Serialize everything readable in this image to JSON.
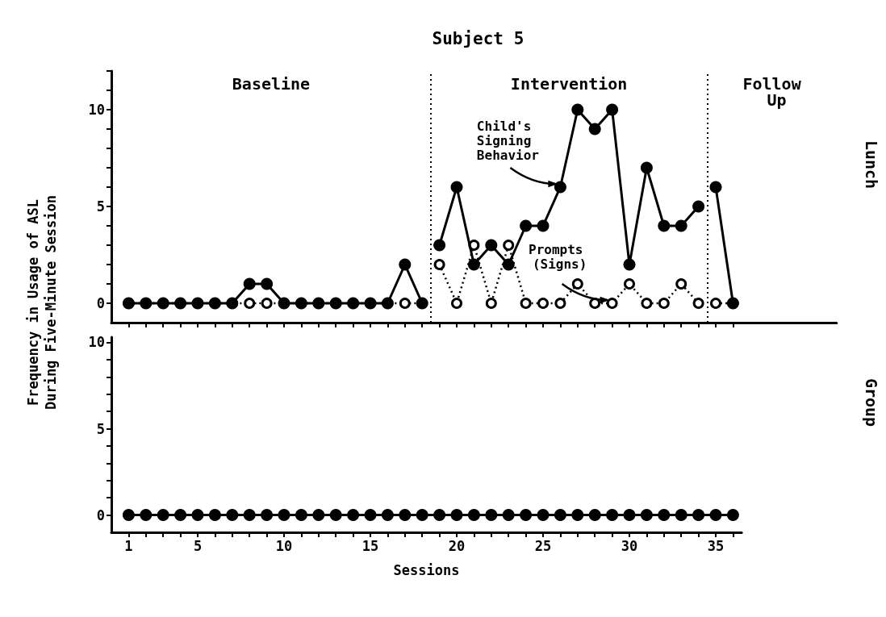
{
  "chart_data": [
    {
      "type": "line",
      "title": "Subject 5",
      "ylabel": "Frequency in Usage of ASL During Five-Minute Session",
      "xlim": [
        0,
        42
      ],
      "ylim": [
        -1,
        12
      ],
      "xticks": [
        1,
        2,
        3,
        4,
        5,
        6,
        7,
        8,
        9,
        10,
        11,
        12,
        13,
        14,
        15,
        16,
        17,
        18,
        19,
        20,
        21,
        22,
        23,
        24,
        25,
        26,
        27,
        28,
        29,
        30,
        31,
        32,
        33,
        34,
        35,
        36
      ],
      "yticks": [
        0,
        {
          "value": 1,
          "label": null
        },
        {
          "value": 2,
          "label": null
        },
        {
          "value": 3,
          "label": null
        },
        {
          "value": 4,
          "label": null
        },
        5,
        {
          "value": 6,
          "label": null
        },
        {
          "value": 7,
          "label": null
        },
        {
          "value": 8,
          "label": null
        },
        {
          "value": 9,
          "label": null
        },
        10,
        {
          "value": 11,
          "label": null
        },
        {
          "value": 12,
          "label": null
        }
      ],
      "tick_labels": "y",
      "grid": false,
      "marker": "circle",
      "series": [
        {
          "color": "#000000",
          "line_style": "dotted",
          "x": [
            1,
            2,
            3,
            4,
            5,
            6,
            7,
            8,
            9,
            10,
            11,
            12,
            13,
            14,
            15,
            16,
            17,
            18
          ],
          "values": [
            0,
            0,
            0,
            0,
            0,
            0,
            0,
            0,
            0,
            0,
            0,
            0,
            0,
            0,
            0,
            0,
            0,
            0
          ]
        },
        {
          "color": "#000000",
          "line_style": "dotted",
          "x": [
            19,
            20,
            21,
            22,
            23,
            24,
            25,
            26,
            27,
            28,
            29,
            30,
            31,
            32,
            33,
            34
          ],
          "values": [
            2,
            0,
            3,
            0,
            3,
            0,
            0,
            0,
            1,
            0,
            0,
            1,
            0,
            0,
            1,
            0
          ]
        },
        {
          "color": "#000000",
          "line_style": "dotted",
          "x": [
            35,
            36
          ],
          "values": [
            0,
            0
          ]
        },
        {
          "color": "#000000",
          "line_style": "solid",
          "x": [
            1,
            2,
            3,
            4,
            5,
            6,
            7,
            8,
            9,
            10,
            11,
            12,
            13,
            14,
            15,
            16,
            17,
            18
          ],
          "values": [
            0,
            0,
            0,
            0,
            0,
            0,
            0,
            1,
            1,
            0,
            0,
            0,
            0,
            0,
            0,
            0,
            2,
            0
          ]
        },
        {
          "color": "#000000",
          "line_style": "solid",
          "x": [
            19,
            20,
            21,
            22,
            23,
            24,
            25,
            26,
            27,
            28,
            29,
            30,
            31,
            32,
            33,
            34
          ],
          "values": [
            3,
            6,
            2,
            3,
            2,
            4,
            4,
            6,
            10,
            9,
            10,
            2,
            7,
            4,
            4,
            5
          ]
        },
        {
          "color": "#000000",
          "line_style": "solid",
          "x": [
            35,
            36
          ],
          "values": [
            6,
            0
          ]
        }
      ],
      "ref_lines": [
        {
          "axis": "x",
          "value": 18.5,
          "line_style": "dotted"
        },
        {
          "axis": "x",
          "value": 34.5,
          "line_style": "dotted"
        }
      ],
      "annotations": [
        "Baseline",
        "Intervention",
        "Follow Up",
        "Lunch",
        {
          "text": "Child's Signing Behavior",
          "x": 26,
          "y": 6
        },
        {
          "text": "Prompts (Signs)",
          "x": 29,
          "y": 0
        }
      ]
    },
    {
      "type": "line",
      "xlabel": "Sessions",
      "xlim": [
        0,
        36.5
      ],
      "ylim": [
        -1,
        10.3
      ],
      "xticks": [
        1,
        {
          "value": 2,
          "label": null
        },
        {
          "value": 3,
          "label": null
        },
        {
          "value": 4,
          "label": null
        },
        5,
        {
          "value": 6,
          "label": null
        },
        {
          "value": 7,
          "label": null
        },
        {
          "value": 8,
          "label": null
        },
        {
          "value": 9,
          "label": null
        },
        10,
        {
          "value": 11,
          "label": null
        },
        {
          "value": 12,
          "label": null
        },
        {
          "value": 13,
          "label": null
        },
        {
          "value": 14,
          "label": null
        },
        15,
        {
          "value": 16,
          "label": null
        },
        {
          "value": 17,
          "label": null
        },
        {
          "value": 18,
          "label": null
        },
        {
          "value": 19,
          "label": null
        },
        20,
        {
          "value": 21,
          "label": null
        },
        {
          "value": 22,
          "label": null
        },
        {
          "value": 23,
          "label": null
        },
        {
          "value": 24,
          "label": null
        },
        25,
        {
          "value": 26,
          "label": null
        },
        {
          "value": 27,
          "label": null
        },
        {
          "value": 28,
          "label": null
        },
        {
          "value": 29,
          "label": null
        },
        30,
        {
          "value": 31,
          "label": null
        },
        {
          "value": 32,
          "label": null
        },
        {
          "value": 33,
          "label": null
        },
        {
          "value": 34,
          "label": null
        },
        35,
        {
          "value": 36,
          "label": null
        }
      ],
      "yticks": [
        0,
        {
          "value": 1,
          "label": null
        },
        {
          "value": 2,
          "label": null
        },
        {
          "value": 3,
          "label": null
        },
        {
          "value": 4,
          "label": null
        },
        5,
        {
          "value": 6,
          "label": null
        },
        {
          "value": 7,
          "label": null
        },
        {
          "value": 8,
          "label": null
        },
        {
          "value": 9,
          "label": null
        },
        10
      ],
      "grid": false,
      "marker": "circle",
      "series": [
        {
          "color": "#000000",
          "line_style": "solid",
          "x": [
            1,
            2,
            3,
            4,
            5,
            6,
            7,
            8,
            9,
            10,
            11,
            12,
            13,
            14,
            15,
            16,
            17,
            18,
            19,
            20,
            21,
            22,
            23,
            24,
            25,
            26,
            27,
            28,
            29,
            30,
            31,
            32,
            33,
            34,
            35,
            36
          ],
          "values": [
            0,
            0,
            0,
            0,
            0,
            0,
            0,
            0,
            0,
            0,
            0,
            0,
            0,
            0,
            0,
            0,
            0,
            0,
            0,
            0,
            0,
            0,
            0,
            0,
            0,
            0,
            0,
            0,
            0,
            0,
            0,
            0,
            0,
            0,
            0,
            0
          ]
        }
      ],
      "annotations": [
        "Group"
      ]
    }
  ]
}
